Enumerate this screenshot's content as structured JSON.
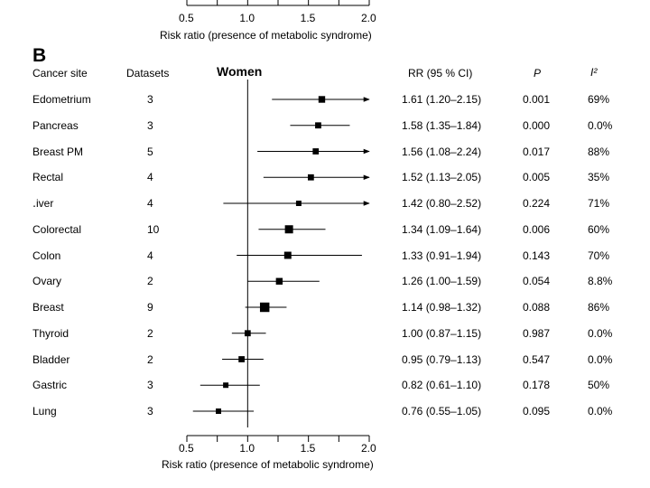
{
  "top_axis": {
    "ticks": [
      "0.5",
      "1.0",
      "1.5",
      "2.0"
    ],
    "xlabel": "Risk ratio (presence of metabolic syndrome)"
  },
  "panel": {
    "label": "B",
    "group_title": "Women",
    "headers": {
      "site": "Cancer site",
      "datasets": "Datasets",
      "rr": "RR (95 % CI)",
      "p": "P",
      "i2": "I²"
    }
  },
  "chart_data": {
    "type": "forest",
    "title": "Women",
    "xlabel": "Risk ratio (presence of metabolic syndrome)",
    "xlim": [
      0.5,
      2.0
    ],
    "ticks": [
      0.5,
      1.0,
      1.5,
      2.0
    ],
    "tick_labels": [
      "0.5",
      "1.0",
      "1.5",
      "2.0"
    ],
    "reference_line": 1.0,
    "rows": [
      {
        "site": "Edometrium",
        "datasets": "3",
        "rr": 1.61,
        "lo": 1.2,
        "hi": 2.15,
        "rr_text": "1.61 (1.20–2.15)",
        "p": "0.001",
        "i2": "69%",
        "weight": 0.5
      },
      {
        "site": "Pancreas",
        "datasets": "3",
        "rr": 1.58,
        "lo": 1.35,
        "hi": 1.84,
        "rr_text": "1.58 (1.35–1.84)",
        "p": "0.000",
        "i2": "0.0%",
        "weight": 0.35
      },
      {
        "site": "Breast PM",
        "datasets": "5",
        "rr": 1.56,
        "lo": 1.08,
        "hi": 2.24,
        "rr_text": "1.56 (1.08–2.24)",
        "p": "0.017",
        "i2": "88%",
        "weight": 0.35
      },
      {
        "site": "Rectal",
        "datasets": "4",
        "rr": 1.52,
        "lo": 1.13,
        "hi": 2.05,
        "rr_text": "1.52 (1.13–2.05)",
        "p": "0.005",
        "i2": "35%",
        "weight": 0.35
      },
      {
        "site": "․iver",
        "datasets": "4",
        "rr": 1.42,
        "lo": 0.8,
        "hi": 2.52,
        "rr_text": "1.42 (0.80–2.52)",
        "p": "0.224",
        "i2": "71%",
        "weight": 0.2
      },
      {
        "site": "Colorectal",
        "datasets": "10",
        "rr": 1.34,
        "lo": 1.09,
        "hi": 1.64,
        "rr_text": "1.34 (1.09–1.64)",
        "p": "0.006",
        "i2": "60%",
        "weight": 1.0
      },
      {
        "site": "Colon",
        "datasets": "4",
        "rr": 1.33,
        "lo": 0.91,
        "hi": 1.94,
        "rr_text": "1.33 (0.91–1.94)",
        "p": "0.143",
        "i2": "70%",
        "weight": 0.65
      },
      {
        "site": "Ovary",
        "datasets": "2",
        "rr": 1.26,
        "lo": 1.0,
        "hi": 1.59,
        "rr_text": "1.26 (1.00–1.59)",
        "p": "0.054",
        "i2": "8.8%",
        "weight": 0.5
      },
      {
        "site": "Breast",
        "datasets": "9",
        "rr": 1.14,
        "lo": 0.98,
        "hi": 1.32,
        "rr_text": "1.14 (0.98–1.32)",
        "p": "0.088",
        "i2": "86%",
        "weight": 1.6
      },
      {
        "site": "Thyroid",
        "datasets": "2",
        "rr": 1.0,
        "lo": 0.87,
        "hi": 1.15,
        "rr_text": "1.00 (0.87–1.15)",
        "p": "0.987",
        "i2": "0.0%",
        "weight": 0.35
      },
      {
        "site": "Bladder",
        "datasets": "2",
        "rr": 0.95,
        "lo": 0.79,
        "hi": 1.13,
        "rr_text": "0.95 (0.79–1.13)",
        "p": "0.547",
        "i2": "0.0%",
        "weight": 0.35
      },
      {
        "site": "Gastric",
        "datasets": "3",
        "rr": 0.82,
        "lo": 0.61,
        "hi": 1.1,
        "rr_text": "0.82 (0.61–1.10)",
        "p": "0.178",
        "i2": "50%",
        "weight": 0.2
      },
      {
        "site": "Lung",
        "datasets": "3",
        "rr": 0.76,
        "lo": 0.55,
        "hi": 1.05,
        "rr_text": "0.76 (0.55–1.05)",
        "p": "0.095",
        "i2": "0.0%",
        "weight": 0.2
      }
    ]
  }
}
